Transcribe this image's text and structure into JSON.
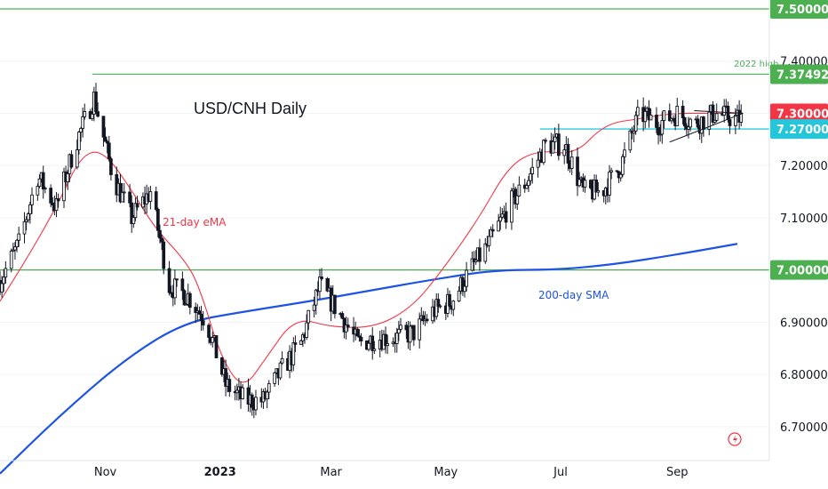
{
  "chart_data": {
    "type": "candlestick",
    "title": "USD/CNH Daily",
    "x_ticks": [
      "Nov",
      "2023",
      "Mar",
      "May",
      "Jul",
      "Sep"
    ],
    "y_ticks": [
      "7.50000",
      "7.40000",
      "7.30000",
      "7.20000",
      "7.10000",
      "7.00000",
      "6.90000",
      "6.80000",
      "6.70000"
    ],
    "ylim": [
      6.635,
      7.517
    ],
    "price_tags": [
      {
        "label": "7.50000",
        "value": 7.5,
        "color": "#4caf50"
      },
      {
        "label": "7.37492",
        "value": 7.37492,
        "color": "#4caf50"
      },
      {
        "label": "7.30000",
        "value": 7.3,
        "color": "#f23645"
      },
      {
        "label": "7.27000",
        "value": 7.27,
        "color": "#26c6da"
      },
      {
        "label": "7.00000",
        "value": 7.0,
        "color": "#4caf50"
      }
    ],
    "horizontal_lines": [
      {
        "name": "level-7.50",
        "value": 7.5,
        "color": "#4caf50",
        "from": "left-edge"
      },
      {
        "name": "2022-high",
        "value": 7.37492,
        "color": "#4caf50",
        "from": "2022-10-25"
      },
      {
        "name": "resistance-7.27",
        "value": 7.27,
        "color": "#00bcd4",
        "from": "2023-06-20"
      },
      {
        "name": "level-7.00",
        "value": 7.0,
        "color": "#4caf50",
        "from": "left-edge"
      }
    ],
    "annotations": [
      {
        "text": "2022 high",
        "color": "#4caf50"
      },
      {
        "text": "21-day eMA",
        "color": "#f23645"
      },
      {
        "text": "200-day SMA",
        "color": "#1e53e5"
      }
    ],
    "candle_anchors": {
      "dates": [
        "2022-09-06",
        "2022-09-16",
        "2022-09-26",
        "2022-10-06",
        "2022-10-16",
        "2022-10-26",
        "2022-11-05",
        "2022-11-15",
        "2022-11-25",
        "2022-12-05",
        "2022-12-15",
        "2022-12-25",
        "2023-01-04",
        "2023-01-14",
        "2023-01-24",
        "2023-02-03",
        "2023-02-13",
        "2023-02-23",
        "2023-03-05",
        "2023-03-15",
        "2023-03-25",
        "2023-04-04",
        "2023-04-14",
        "2023-04-24",
        "2023-05-04",
        "2023-05-14",
        "2023-05-24",
        "2023-06-03",
        "2023-06-13",
        "2023-06-23",
        "2023-07-03",
        "2023-07-13",
        "2023-07-23",
        "2023-08-02",
        "2023-08-12",
        "2023-08-22",
        "2023-09-01",
        "2023-09-11",
        "2023-09-21",
        "2023-10-01",
        "2023-10-05"
      ],
      "closes": [
        6.98,
        7.05,
        7.18,
        7.12,
        7.24,
        7.33,
        7.18,
        7.1,
        7.15,
        6.97,
        6.95,
        6.9,
        6.78,
        6.75,
        6.75,
        6.81,
        6.86,
        6.97,
        6.92,
        6.86,
        6.87,
        6.87,
        6.88,
        6.92,
        6.94,
        7.0,
        7.05,
        7.12,
        7.17,
        7.24,
        7.24,
        7.15,
        7.15,
        7.2,
        7.3,
        7.28,
        7.3,
        7.28,
        7.3,
        7.29,
        7.29
      ]
    },
    "ema21_anchors": [
      [
        0,
        6.94
      ],
      [
        0.04,
        7.03
      ],
      [
        0.08,
        7.13
      ],
      [
        0.11,
        7.22
      ],
      [
        0.14,
        7.23
      ],
      [
        0.18,
        7.15
      ],
      [
        0.21,
        7.08
      ],
      [
        0.25,
        7.02
      ],
      [
        0.27,
        6.97
      ],
      [
        0.3,
        6.83
      ],
      [
        0.33,
        6.77
      ],
      [
        0.36,
        6.83
      ],
      [
        0.4,
        6.91
      ],
      [
        0.45,
        6.89
      ],
      [
        0.51,
        6.89
      ],
      [
        0.56,
        6.93
      ],
      [
        0.6,
        7.0
      ],
      [
        0.65,
        7.1
      ],
      [
        0.69,
        7.2
      ],
      [
        0.73,
        7.23
      ],
      [
        0.78,
        7.22
      ],
      [
        0.82,
        7.28
      ],
      [
        0.87,
        7.29
      ],
      [
        0.91,
        7.3
      ],
      [
        0.96,
        7.3
      ],
      [
        1,
        7.3
      ]
    ],
    "sma200_anchors": [
      [
        0,
        6.61
      ],
      [
        0.08,
        6.72
      ],
      [
        0.17,
        6.83
      ],
      [
        0.25,
        6.9
      ],
      [
        0.33,
        6.92
      ],
      [
        0.42,
        6.94
      ],
      [
        0.5,
        6.96
      ],
      [
        0.58,
        6.98
      ],
      [
        0.67,
        7.0
      ],
      [
        0.75,
        7.0
      ],
      [
        0.83,
        7.01
      ],
      [
        0.92,
        7.03
      ],
      [
        1,
        7.05
      ]
    ],
    "ohlc_seed": 7
  }
}
